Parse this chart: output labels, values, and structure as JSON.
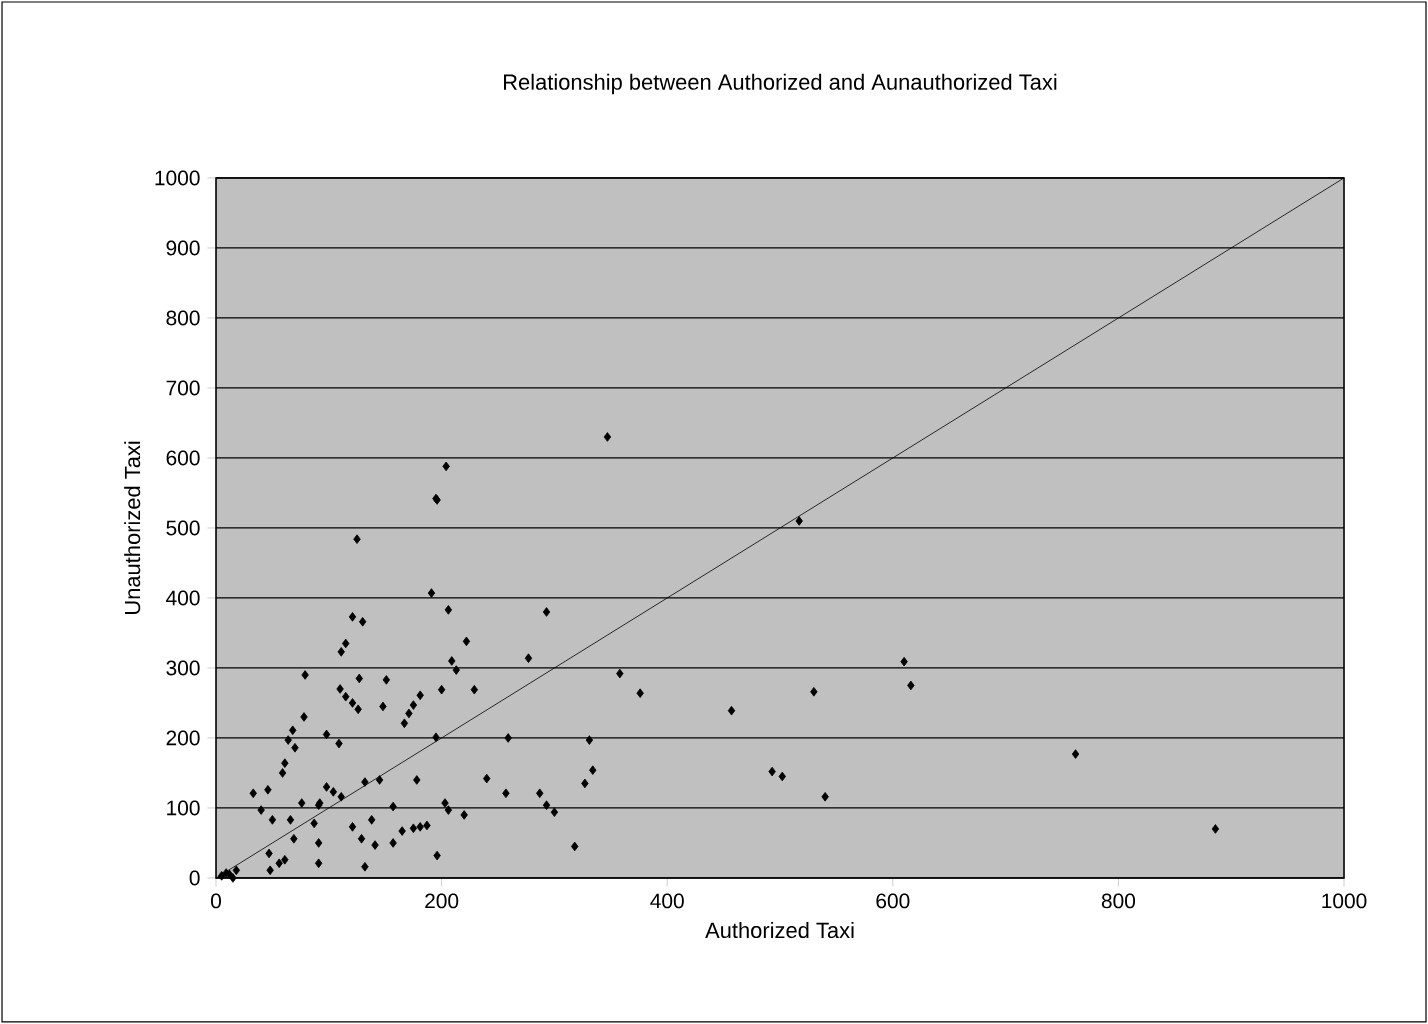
{
  "chart_data": {
    "type": "scatter",
    "title": "Relationship between Authorized and Aunauthorized Taxi",
    "xlabel": "Authorized Taxi",
    "ylabel": "Unauthorized Taxi",
    "xlim": [
      0,
      1000
    ],
    "ylim": [
      0,
      1000
    ],
    "xticks": [
      0,
      200,
      400,
      600,
      800,
      1000
    ],
    "yticks": [
      0,
      100,
      200,
      300,
      400,
      500,
      600,
      700,
      800,
      900,
      1000
    ],
    "grid": "y",
    "marker": "diamond",
    "series": [
      {
        "color": "#000000",
        "x": [
          196,
          125,
          191,
          206,
          293,
          121,
          130,
          222,
          115,
          111,
          277,
          209,
          213,
          79,
          127,
          151,
          110,
          115,
          121,
          126,
          200,
          229,
          181,
          175,
          171,
          167,
          148,
          78,
          68,
          64,
          70,
          98,
          109,
          195,
          259,
          61,
          59,
          33,
          46,
          40,
          145,
          132,
          178,
          240,
          257,
          287,
          293,
          98,
          104,
          111,
          92,
          76,
          91,
          157,
          203,
          206,
          220,
          50,
          66,
          69,
          87,
          91,
          121,
          129,
          141,
          138,
          157,
          165,
          175,
          181,
          187,
          47,
          56,
          61,
          48,
          91,
          132,
          196,
          9,
          18,
          15,
          358,
          376,
          457,
          331,
          334,
          327,
          300,
          318,
          347,
          204,
          195,
          517,
          610,
          616,
          530,
          493,
          502,
          540,
          762,
          886,
          5,
          12
        ],
        "values": [
          540,
          484,
          407,
          383,
          380,
          373,
          366,
          338,
          335,
          323,
          314,
          310,
          297,
          290,
          285,
          283,
          270,
          259,
          250,
          241,
          269,
          269,
          261,
          247,
          235,
          221,
          245,
          230,
          211,
          197,
          186,
          205,
          192,
          201,
          200,
          164,
          150,
          121,
          126,
          97,
          140,
          137,
          140,
          142,
          121,
          121,
          104,
          130,
          123,
          116,
          107,
          107,
          104,
          102,
          107,
          97,
          90,
          83,
          83,
          56,
          78,
          50,
          73,
          56,
          47,
          83,
          50,
          67,
          71,
          73,
          75,
          35,
          21,
          26,
          11,
          21,
          16,
          32,
          7,
          11,
          0,
          292,
          264,
          239,
          197,
          154,
          135,
          94,
          45,
          630,
          588,
          542,
          510,
          309,
          275,
          266,
          152,
          145,
          116,
          177,
          70,
          3,
          5
        ]
      },
      {
        "type": "line",
        "marker": "none",
        "color": "#000000",
        "x": [
          0,
          1000
        ],
        "values": [
          0,
          1000
        ]
      }
    ]
  }
}
